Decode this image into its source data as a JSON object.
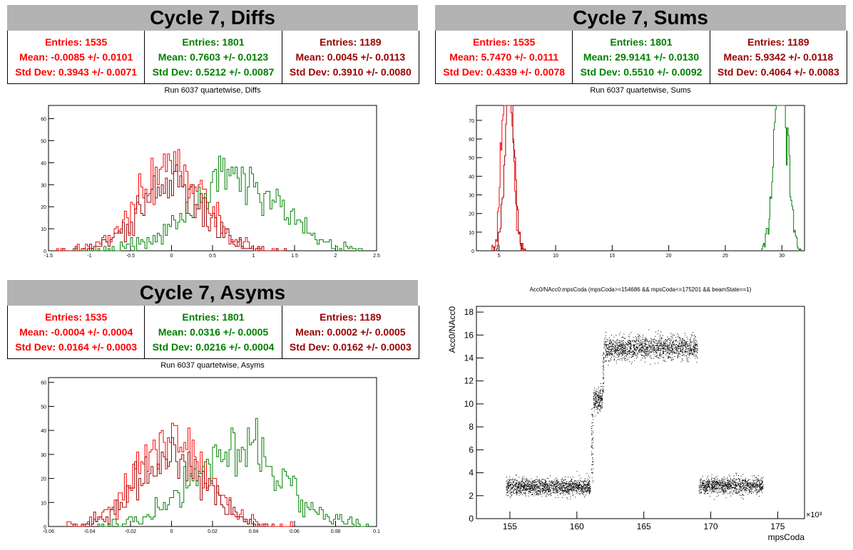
{
  "panels": {
    "diffs": {
      "title": "Cycle 7, Diffs",
      "subtitle": "Run 6037 quartetwise, Diffs",
      "stats": [
        {
          "entries": "Entries: 1535",
          "mean": "Mean: -0.0085 +/- 0.0101",
          "std": "Std Dev: 0.3943 +/- 0.0071",
          "color": "#ff0000"
        },
        {
          "entries": "Entries: 1801",
          "mean": "Mean: 0.7603 +/- 0.0123",
          "std": "Std Dev: 0.5212 +/- 0.0087",
          "color": "#008000"
        },
        {
          "entries": "Entries: 1189",
          "mean": "Mean: 0.0045 +/- 0.0113",
          "std": "Std Dev: 0.3910 +/- 0.0080",
          "color": "#990000"
        }
      ]
    },
    "sums": {
      "title": "Cycle 7, Sums",
      "subtitle": "Run 6037 quartetwise, Sums",
      "stats": [
        {
          "entries": "Entries: 1535",
          "mean": "Mean: 5.7470 +/- 0.0111",
          "std": "Std Dev: 0.4339 +/- 0.0078",
          "color": "#ff0000"
        },
        {
          "entries": "Entries: 1801",
          "mean": "Mean: 29.9141 +/- 0.0130",
          "std": "Std Dev: 0.5510 +/- 0.0092",
          "color": "#008000"
        },
        {
          "entries": "Entries: 1189",
          "mean": "Mean: 5.9342 +/- 0.0118",
          "std": "Std Dev: 0.4064 +/- 0.0083",
          "color": "#990000"
        }
      ]
    },
    "asyms": {
      "title": "Cycle 7, Asyms",
      "subtitle": "Run 6037 quartetwise, Asyms",
      "stats": [
        {
          "entries": "Entries: 1535",
          "mean": "Mean: -0.0004 +/- 0.0004",
          "std": "Std Dev: 0.0164 +/- 0.0003",
          "color": "#ff0000"
        },
        {
          "entries": "Entries: 1801",
          "mean": "Mean: 0.0316 +/- 0.0005",
          "std": "Std Dev: 0.0216 +/- 0.0004",
          "color": "#008000"
        },
        {
          "entries": "Entries: 1189",
          "mean": "Mean: 0.0002 +/- 0.0005",
          "std": "Std Dev: 0.0162 +/- 0.0003",
          "color": "#990000"
        }
      ]
    },
    "scatter": {
      "title": "Acc0/NAcc0:mpsCoda (mpsCoda>=154686 && mpsCoda<=175201 && beamState==1)"
    }
  },
  "chart_data": [
    {
      "id": "diffs",
      "type": "histogram",
      "xlim": [
        -1.5,
        2.5
      ],
      "ylim": [
        0,
        66
      ],
      "xticks": [
        -1.5,
        -1,
        -0.5,
        0,
        0.5,
        1,
        1.5,
        2,
        2.5
      ],
      "xtick_labels": [
        "-1.5",
        "-1",
        "-0.5",
        "0",
        "0.5",
        "1",
        "1.5",
        "2",
        "2.5"
      ],
      "yticks": [
        0,
        10,
        20,
        30,
        40,
        50,
        60
      ],
      "series": [
        {
          "color": "#ff0000",
          "mean": -0.0085,
          "std": 0.3943,
          "entries": 1535
        },
        {
          "color": "#008000",
          "mean": 0.7603,
          "std": 0.5212,
          "entries": 1801
        },
        {
          "color": "#990000",
          "mean": 0.0045,
          "std": 0.391,
          "entries": 1189
        }
      ],
      "bins": 160
    },
    {
      "id": "sums",
      "type": "histogram",
      "xlim": [
        3,
        32
      ],
      "ylim": [
        0,
        78
      ],
      "xticks": [
        5,
        10,
        15,
        20,
        25,
        30
      ],
      "xtick_labels": [
        "5",
        "10",
        "15",
        "20",
        "25",
        "30"
      ],
      "yticks": [
        0,
        10,
        20,
        30,
        40,
        50,
        60,
        70
      ],
      "series": [
        {
          "color": "#ff0000",
          "mean": 5.747,
          "std": 0.4339,
          "entries": 1535
        },
        {
          "color": "#008000",
          "mean": 29.9141,
          "std": 0.551,
          "entries": 1801
        },
        {
          "color": "#990000",
          "mean": 5.9342,
          "std": 0.4064,
          "entries": 1189
        }
      ],
      "bins": 360
    },
    {
      "id": "asyms",
      "type": "histogram",
      "xlim": [
        -0.06,
        0.1
      ],
      "ylim": [
        0,
        62
      ],
      "xticks": [
        -0.06,
        -0.04,
        -0.02,
        0,
        0.02,
        0.04,
        0.06,
        0.08,
        0.1
      ],
      "xtick_labels": [
        "-0.06",
        "-0.04",
        "-0.02",
        "0",
        "0.02",
        "0.04",
        "0.06",
        "0.08",
        "0.1"
      ],
      "yticks": [
        0,
        10,
        20,
        30,
        40,
        50,
        60
      ],
      "series": [
        {
          "color": "#ff0000",
          "mean": -0.0004,
          "std": 0.0164,
          "entries": 1535
        },
        {
          "color": "#008000",
          "mean": 0.0316,
          "std": 0.0216,
          "entries": 1801
        },
        {
          "color": "#990000",
          "mean": 0.0002,
          "std": 0.0162,
          "entries": 1189
        }
      ],
      "bins": 160
    },
    {
      "id": "scatter",
      "type": "scatter",
      "xlabel": "mpsCoda",
      "ylabel": "Acc0/NAcc0",
      "x_multiplier_label": "×10³",
      "xlim": [
        152.5,
        177
      ],
      "ylim": [
        0,
        18.5
      ],
      "xticks": [
        155,
        160,
        165,
        170,
        175
      ],
      "xtick_labels": [
        "155",
        "160",
        "165",
        "170",
        "175"
      ],
      "yticks": [
        0,
        2,
        4,
        6,
        8,
        10,
        12,
        14,
        16,
        18
      ],
      "ytick_labels": [
        "0",
        "2",
        "4",
        "6",
        "8",
        "10",
        "12",
        "14",
        "16",
        "18"
      ],
      "clusters": [
        {
          "x": [
            154.7,
            161.0
          ],
          "y_center": 2.8,
          "y_spread": 0.35,
          "density": 1400
        },
        {
          "x": [
            161.2,
            161.9
          ],
          "y_center": 10.4,
          "y_spread": 0.5,
          "density": 200
        },
        {
          "x": [
            162.0,
            169.0
          ],
          "y_center": 14.9,
          "y_spread": 0.5,
          "density": 1500
        },
        {
          "x": [
            169.1,
            173.9
          ],
          "y_center": 2.9,
          "y_spread": 0.35,
          "density": 1000
        }
      ]
    }
  ]
}
